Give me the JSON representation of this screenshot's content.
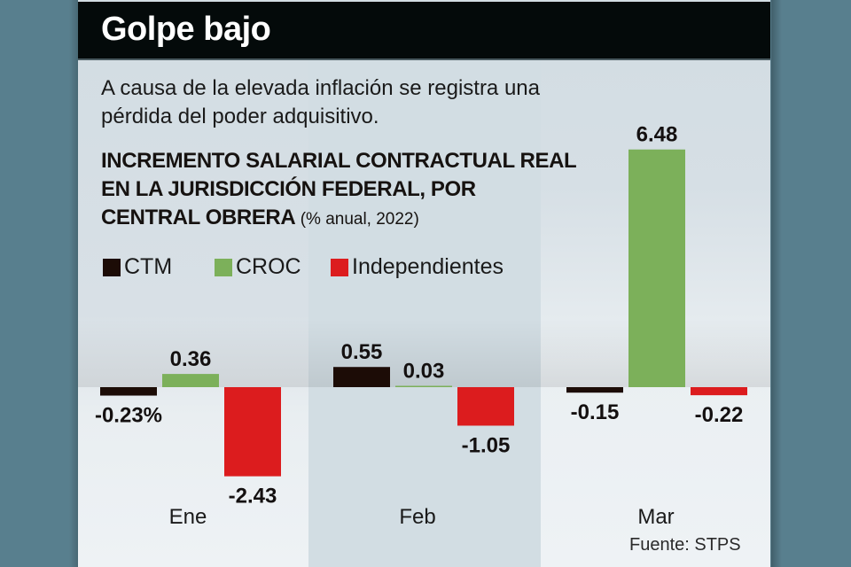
{
  "header": {
    "title": "Golpe bajo"
  },
  "subtitle": "A causa de la elevada inflación se registra una pérdida del poder adquisitivo.",
  "chart_title": {
    "main": "INCREMENTO SALARIAL CONTRACTUAL REAL EN LA JURISDICCIÓN FEDERAL, POR CENTRAL OBRERA",
    "unit": "(% anual, 2022)"
  },
  "source": "Fuente: STPS",
  "colors": {
    "CTM": "#1c0c06",
    "CROC": "#7cb05a",
    "Independientes": "#dc1c1e"
  },
  "chart_data": {
    "type": "bar",
    "title": "INCREMENTO SALARIAL CONTRACTUAL REAL EN LA JURISDICCIÓN FEDERAL, POR CENTRAL OBRERA (% anual, 2022)",
    "xlabel": "",
    "ylabel": "% anual",
    "categories": [
      "Ene",
      "Feb",
      "Mar"
    ],
    "series": [
      {
        "name": "CTM",
        "values": [
          -0.23,
          0.55,
          -0.15
        ],
        "labels": [
          "-0.23%",
          "0.55",
          "-0.15"
        ]
      },
      {
        "name": "CROC",
        "values": [
          0.36,
          0.03,
          6.48
        ],
        "labels": [
          "0.36",
          "0.03",
          "6.48"
        ]
      },
      {
        "name": "Independientes",
        "values": [
          -2.43,
          -1.05,
          -0.22
        ],
        "labels": [
          "-2.43",
          "-1.05",
          "-0.22"
        ]
      }
    ],
    "ylim": [
      -2.43,
      6.48
    ],
    "grid": false,
    "legend": "top-left",
    "data_labels": true
  }
}
